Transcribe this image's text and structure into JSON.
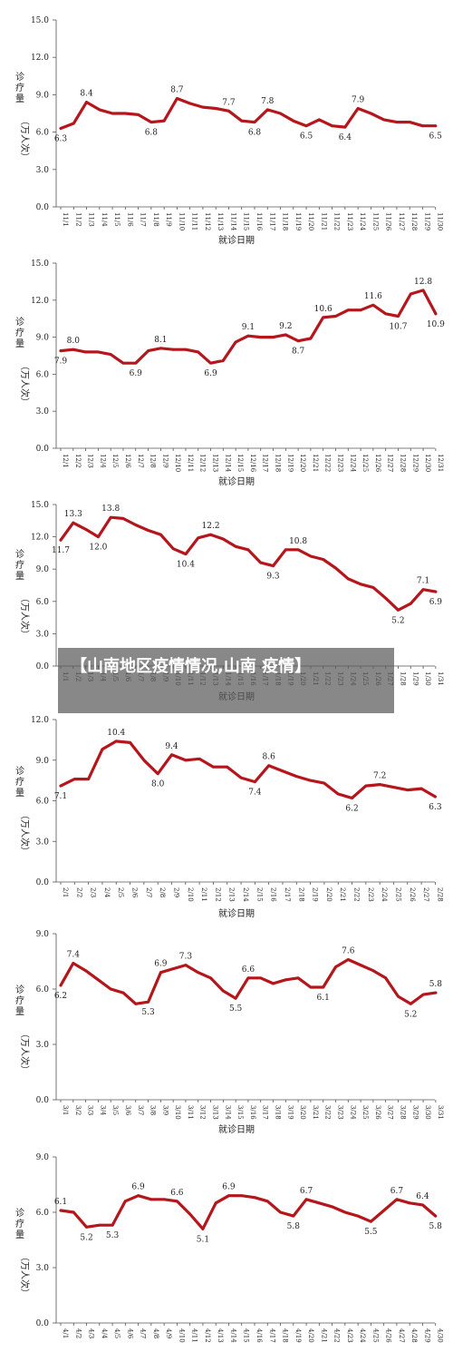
{
  "caption": "【山南地区疫情情况,山南 疫情】",
  "axis_titles": {
    "ylabel": "诊疗量（万人次）",
    "xlabel": "就诊日期"
  },
  "chart_data": [
    {
      "type": "line",
      "xlabel": "就诊日期",
      "ylabel": "诊疗量（万人次）",
      "ylim": [
        0,
        15
      ],
      "yticks": [
        "0.0",
        "3.0",
        "6.0",
        "9.0",
        "12.0",
        "15.0"
      ],
      "categories": [
        "11/1",
        "11/2",
        "11/3",
        "11/4",
        "11/5",
        "11/6",
        "11/7",
        "11/8",
        "11/9",
        "11/10",
        "11/11",
        "11/12",
        "11/13",
        "11/14",
        "11/15",
        "11/16",
        "11/17",
        "11/18",
        "11/19",
        "11/20",
        "11/21",
        "11/22",
        "11/23",
        "11/24",
        "11/25",
        "11/26",
        "11/27",
        "11/28",
        "11/29",
        "11/30"
      ],
      "values": [
        6.3,
        6.7,
        8.4,
        7.8,
        7.5,
        7.5,
        7.4,
        6.8,
        6.9,
        8.7,
        8.3,
        8.0,
        7.9,
        7.7,
        6.9,
        6.8,
        7.8,
        7.5,
        6.9,
        6.5,
        7.0,
        6.5,
        6.4,
        7.9,
        7.5,
        7.0,
        6.8,
        6.8,
        6.5,
        6.5
      ],
      "data_labels": [
        {
          "i": 0,
          "text": "6.3",
          "pos": "below"
        },
        {
          "i": 2,
          "text": "8.4",
          "pos": "above"
        },
        {
          "i": 7,
          "text": "6.8",
          "pos": "below"
        },
        {
          "i": 9,
          "text": "8.7",
          "pos": "above"
        },
        {
          "i": 13,
          "text": "7.7",
          "pos": "above"
        },
        {
          "i": 15,
          "text": "6.8",
          "pos": "below"
        },
        {
          "i": 16,
          "text": "7.8",
          "pos": "above"
        },
        {
          "i": 19,
          "text": "6.5",
          "pos": "below"
        },
        {
          "i": 22,
          "text": "6.4",
          "pos": "below"
        },
        {
          "i": 23,
          "text": "7.9",
          "pos": "above"
        },
        {
          "i": 29,
          "text": "6.5",
          "pos": "below"
        }
      ]
    },
    {
      "type": "line",
      "xlabel": "就诊日期",
      "ylabel": "诊疗量（万人次）",
      "ylim": [
        0,
        15
      ],
      "yticks": [
        "0.0",
        "3.0",
        "6.0",
        "9.0",
        "12.0",
        "15.0"
      ],
      "categories": [
        "12/1",
        "12/2",
        "12/3",
        "12/4",
        "12/5",
        "12/6",
        "12/7",
        "12/8",
        "12/9",
        "12/10",
        "12/11",
        "12/12",
        "12/13",
        "12/14",
        "12/15",
        "12/16",
        "12/17",
        "12/18",
        "12/19",
        "12/20",
        "12/21",
        "12/22",
        "12/23",
        "12/24",
        "12/25",
        "12/26",
        "12/27",
        "12/28",
        "12/29",
        "12/30",
        "12/31"
      ],
      "values": [
        7.9,
        8.0,
        7.8,
        7.8,
        7.6,
        6.9,
        6.9,
        7.9,
        8.1,
        8.0,
        8.0,
        7.8,
        6.9,
        7.1,
        8.6,
        9.1,
        9.0,
        9.0,
        9.2,
        8.7,
        8.9,
        10.6,
        10.7,
        11.2,
        11.2,
        11.6,
        10.9,
        10.7,
        12.5,
        12.8,
        10.9
      ],
      "data_labels": [
        {
          "i": 0,
          "text": "7.9",
          "pos": "below"
        },
        {
          "i": 1,
          "text": "8.0",
          "pos": "above"
        },
        {
          "i": 6,
          "text": "6.9",
          "pos": "below"
        },
        {
          "i": 8,
          "text": "8.1",
          "pos": "above"
        },
        {
          "i": 12,
          "text": "6.9",
          "pos": "below"
        },
        {
          "i": 15,
          "text": "9.1",
          "pos": "above"
        },
        {
          "i": 18,
          "text": "9.2",
          "pos": "above"
        },
        {
          "i": 19,
          "text": "8.7",
          "pos": "below"
        },
        {
          "i": 21,
          "text": "10.6",
          "pos": "above"
        },
        {
          "i": 25,
          "text": "11.6",
          "pos": "above"
        },
        {
          "i": 27,
          "text": "10.7",
          "pos": "below"
        },
        {
          "i": 29,
          "text": "12.8",
          "pos": "above"
        },
        {
          "i": 30,
          "text": "10.9",
          "pos": "below"
        }
      ]
    },
    {
      "type": "line",
      "xlabel": "就诊日期",
      "ylabel": "诊疗量（万人次）",
      "ylim": [
        0,
        15
      ],
      "yticks": [
        "0.0",
        "3.0",
        "6.0",
        "9.0",
        "12.0",
        "15.0"
      ],
      "categories": [
        "1/1",
        "1/2",
        "1/3",
        "1/4",
        "1/5",
        "1/6",
        "1/7",
        "1/8",
        "1/9",
        "1/10",
        "1/11",
        "1/12",
        "1/13",
        "1/14",
        "1/15",
        "1/16",
        "1/17",
        "1/18",
        "1/19",
        "1/20",
        "1/21",
        "1/22",
        "1/23",
        "1/24",
        "1/25",
        "1/26",
        "1/27",
        "1/28",
        "1/29",
        "1/30",
        "1/31"
      ],
      "values": [
        11.7,
        13.3,
        12.7,
        12.0,
        13.8,
        13.7,
        13.1,
        12.6,
        12.2,
        10.9,
        10.4,
        11.9,
        12.2,
        11.8,
        11.1,
        10.8,
        9.6,
        9.3,
        10.8,
        10.8,
        10.2,
        9.9,
        9.1,
        8.1,
        7.6,
        7.3,
        6.3,
        5.2,
        5.8,
        7.1,
        6.9
      ],
      "data_labels": [
        {
          "i": 0,
          "text": "11.7",
          "pos": "below"
        },
        {
          "i": 1,
          "text": "13.3",
          "pos": "above"
        },
        {
          "i": 3,
          "text": "12.0",
          "pos": "below"
        },
        {
          "i": 4,
          "text": "13.8",
          "pos": "above"
        },
        {
          "i": 10,
          "text": "10.4",
          "pos": "below"
        },
        {
          "i": 12,
          "text": "12.2",
          "pos": "above"
        },
        {
          "i": 17,
          "text": "9.3",
          "pos": "below"
        },
        {
          "i": 19,
          "text": "10.8",
          "pos": "above"
        },
        {
          "i": 27,
          "text": "5.2",
          "pos": "below"
        },
        {
          "i": 29,
          "text": "7.1",
          "pos": "above"
        },
        {
          "i": 30,
          "text": "6.9",
          "pos": "below"
        }
      ]
    },
    {
      "type": "line",
      "xlabel": "就诊日期",
      "ylabel": "诊疗量（万人次）",
      "ylim": [
        0,
        12
      ],
      "yticks": [
        "0.0",
        "3.0",
        "6.0",
        "9.0",
        "12.0"
      ],
      "categories": [
        "2/1",
        "2/2",
        "2/3",
        "2/4",
        "2/5",
        "2/6",
        "2/7",
        "2/8",
        "2/9",
        "2/10",
        "2/11",
        "2/12",
        "2/13",
        "2/14",
        "2/15",
        "2/16",
        "2/17",
        "2/18",
        "2/19",
        "2/20",
        "2/21",
        "2/22",
        "2/23",
        "2/24",
        "2/25",
        "2/26",
        "2/27",
        "2/28"
      ],
      "values": [
        7.1,
        7.6,
        7.6,
        9.8,
        10.4,
        10.3,
        9.0,
        8.0,
        9.4,
        9.0,
        9.1,
        8.5,
        8.5,
        7.7,
        7.4,
        8.6,
        8.2,
        7.8,
        7.5,
        7.3,
        6.5,
        6.2,
        7.1,
        7.2,
        7.0,
        6.8,
        6.9,
        6.3
      ],
      "data_labels": [
        {
          "i": 0,
          "text": "7.1",
          "pos": "below"
        },
        {
          "i": 4,
          "text": "10.4",
          "pos": "above"
        },
        {
          "i": 7,
          "text": "8.0",
          "pos": "below"
        },
        {
          "i": 8,
          "text": "9.4",
          "pos": "above"
        },
        {
          "i": 14,
          "text": "7.4",
          "pos": "below"
        },
        {
          "i": 15,
          "text": "8.6",
          "pos": "above"
        },
        {
          "i": 21,
          "text": "6.2",
          "pos": "below"
        },
        {
          "i": 23,
          "text": "7.2",
          "pos": "above"
        },
        {
          "i": 27,
          "text": "6.3",
          "pos": "below"
        }
      ]
    },
    {
      "type": "line",
      "xlabel": "就诊日期",
      "ylabel": "诊疗量（万人次）",
      "ylim": [
        0,
        9
      ],
      "yticks": [
        "0.0",
        "3.0",
        "6.0",
        "9.0"
      ],
      "categories": [
        "3/1",
        "3/2",
        "3/3",
        "3/4",
        "3/5",
        "3/6",
        "3/7",
        "3/8",
        "3/9",
        "3/10",
        "3/11",
        "3/12",
        "3/13",
        "3/14",
        "3/15",
        "3/16",
        "3/17",
        "3/18",
        "3/19",
        "3/20",
        "3/21",
        "3/22",
        "3/23",
        "3/24",
        "3/25",
        "3/26",
        "3/27",
        "3/28",
        "3/29",
        "3/30",
        "3/31"
      ],
      "values": [
        6.2,
        7.4,
        7.0,
        6.5,
        6.0,
        5.8,
        5.2,
        5.3,
        6.9,
        7.1,
        7.3,
        6.9,
        6.6,
        5.9,
        5.5,
        6.6,
        6.6,
        6.3,
        6.5,
        6.6,
        6.1,
        6.1,
        7.2,
        7.6,
        7.3,
        7.0,
        6.6,
        5.6,
        5.2,
        5.7,
        5.8
      ],
      "data_labels": [
        {
          "i": 0,
          "text": "6.2",
          "pos": "below"
        },
        {
          "i": 1,
          "text": "7.4",
          "pos": "above"
        },
        {
          "i": 7,
          "text": "5.3",
          "pos": "below"
        },
        {
          "i": 8,
          "text": "6.9",
          "pos": "above"
        },
        {
          "i": 10,
          "text": "7.3",
          "pos": "above"
        },
        {
          "i": 14,
          "text": "5.5",
          "pos": "below"
        },
        {
          "i": 15,
          "text": "6.6",
          "pos": "above"
        },
        {
          "i": 21,
          "text": "6.1",
          "pos": "below"
        },
        {
          "i": 23,
          "text": "7.6",
          "pos": "above"
        },
        {
          "i": 28,
          "text": "5.2",
          "pos": "below"
        },
        {
          "i": 30,
          "text": "5.8",
          "pos": "above"
        }
      ]
    },
    {
      "type": "line",
      "xlabel": "",
      "ylabel": "诊疗量（万人次）",
      "ylim": [
        0,
        9
      ],
      "yticks": [
        "0.0",
        "3.0",
        "6.0",
        "9.0"
      ],
      "categories": [
        "4/1",
        "4/2",
        "4/3",
        "4/4",
        "4/5",
        "4/6",
        "4/7",
        "4/8",
        "4/9",
        "4/10",
        "4/11",
        "4/12",
        "4/13",
        "4/14",
        "4/15",
        "4/16",
        "4/17",
        "4/18",
        "4/19",
        "4/20",
        "4/21",
        "4/22",
        "4/23",
        "4/24",
        "4/25",
        "4/26",
        "4/27",
        "4/28",
        "4/29",
        "4/30"
      ],
      "values": [
        6.1,
        6.0,
        5.2,
        5.3,
        5.3,
        6.6,
        6.9,
        6.7,
        6.7,
        6.6,
        5.9,
        5.1,
        6.5,
        6.9,
        6.9,
        6.8,
        6.6,
        6.0,
        5.8,
        6.7,
        6.5,
        6.3,
        6.0,
        5.8,
        5.5,
        6.1,
        6.7,
        6.5,
        6.4,
        5.8
      ],
      "data_labels": [
        {
          "i": 0,
          "text": "6.1",
          "pos": "above"
        },
        {
          "i": 2,
          "text": "5.2",
          "pos": "below"
        },
        {
          "i": 4,
          "text": "5.3",
          "pos": "below"
        },
        {
          "i": 6,
          "text": "6.9",
          "pos": "above"
        },
        {
          "i": 9,
          "text": "6.6",
          "pos": "above"
        },
        {
          "i": 11,
          "text": "5.1",
          "pos": "below"
        },
        {
          "i": 13,
          "text": "6.9",
          "pos": "above"
        },
        {
          "i": 18,
          "text": "5.8",
          "pos": "below"
        },
        {
          "i": 19,
          "text": "6.7",
          "pos": "above"
        },
        {
          "i": 24,
          "text": "5.5",
          "pos": "below"
        },
        {
          "i": 26,
          "text": "6.7",
          "pos": "above"
        },
        {
          "i": 28,
          "text": "6.4",
          "pos": "above"
        },
        {
          "i": 29,
          "text": "5.8",
          "pos": "below"
        }
      ]
    }
  ]
}
